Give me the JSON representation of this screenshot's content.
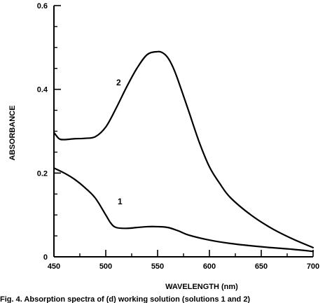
{
  "chart_data": {
    "type": "line",
    "title": "",
    "xlabel": "WAVELENGTH (nm)",
    "ylabel": "ABSORBANCE",
    "xlim": [
      450,
      700
    ],
    "ylim": [
      0,
      0.6
    ],
    "x_ticks": [
      "450",
      "500",
      "550",
      "600",
      "650",
      "700"
    ],
    "y_ticks": [
      "0",
      "0.2",
      "0.4",
      "0.6"
    ],
    "grid": false,
    "series": [
      {
        "name": "1",
        "x": [
          450,
          460,
          470,
          480,
          490,
          500,
          505,
          510,
          520,
          530,
          540,
          550,
          560,
          570,
          580,
          600,
          620,
          650,
          680,
          700
        ],
        "y": [
          0.212,
          0.2,
          0.185,
          0.165,
          0.14,
          0.1,
          0.08,
          0.07,
          0.068,
          0.07,
          0.072,
          0.072,
          0.07,
          0.062,
          0.052,
          0.04,
          0.032,
          0.024,
          0.018,
          0.013
        ]
      },
      {
        "name": "2",
        "x": [
          450,
          455,
          460,
          470,
          480,
          490,
          500,
          510,
          520,
          530,
          540,
          550,
          555,
          560,
          565,
          570,
          580,
          590,
          600,
          610,
          620,
          640,
          660,
          680,
          700
        ],
        "y": [
          0.297,
          0.282,
          0.28,
          0.282,
          0.283,
          0.287,
          0.31,
          0.355,
          0.405,
          0.45,
          0.483,
          0.49,
          0.487,
          0.475,
          0.452,
          0.42,
          0.348,
          0.275,
          0.215,
          0.175,
          0.142,
          0.1,
          0.068,
          0.043,
          0.022
        ]
      }
    ],
    "annotations": [
      "1",
      "2"
    ]
  },
  "caption": "Fig. 4. Absorption spectra of (d) working solution (solutions 1 and 2)"
}
